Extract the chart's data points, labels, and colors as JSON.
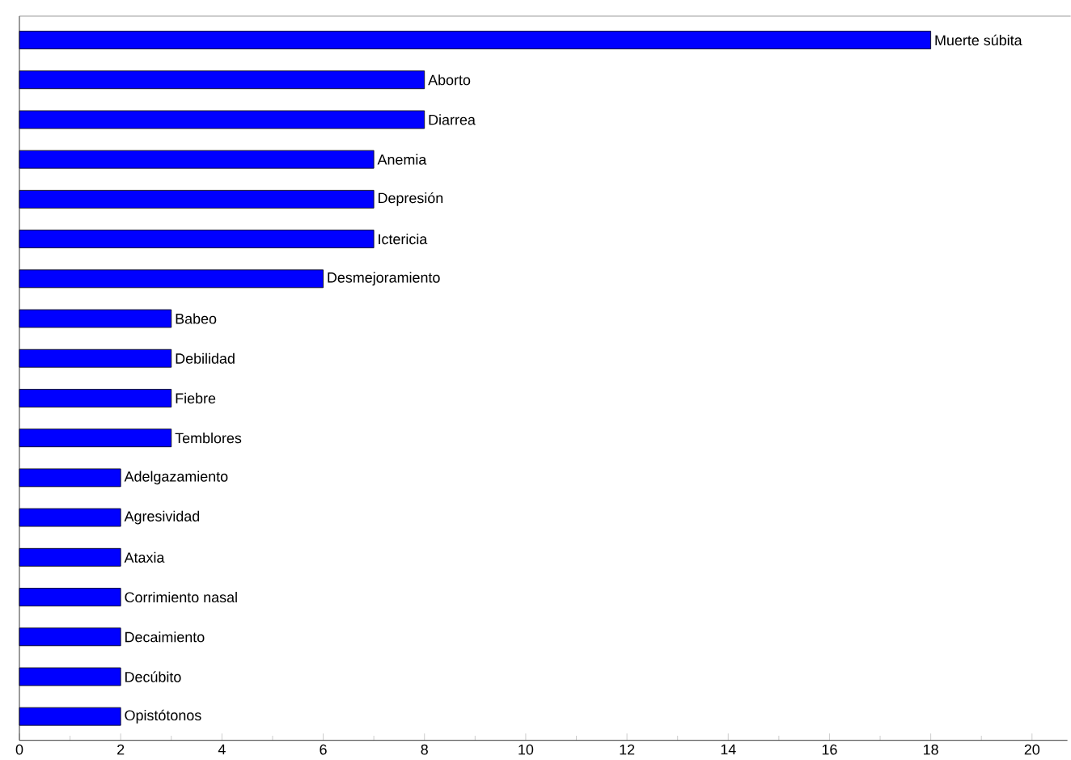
{
  "chart_data": {
    "type": "bar",
    "orientation": "horizontal",
    "categories": [
      "Muerte súbita",
      "Aborto",
      "Diarrea",
      "Anemia",
      "Depresión",
      "Ictericia",
      "Desmejoramiento",
      "Babeo",
      "Debilidad",
      "Fiebre",
      "Temblores",
      "Adelgazamiento",
      "Agresividad",
      "Ataxia",
      "Corrimiento nasal",
      "Decaimiento",
      "Decúbito",
      "Opistótonos"
    ],
    "values": [
      18,
      8,
      8,
      7,
      7,
      7,
      6,
      3,
      3,
      3,
      3,
      2,
      2,
      2,
      2,
      2,
      2,
      2
    ],
    "color": "#0000ff",
    "xlim": [
      0,
      20.7
    ],
    "xticks": [
      0,
      2,
      4,
      6,
      8,
      10,
      12,
      14,
      16,
      18,
      20
    ]
  }
}
